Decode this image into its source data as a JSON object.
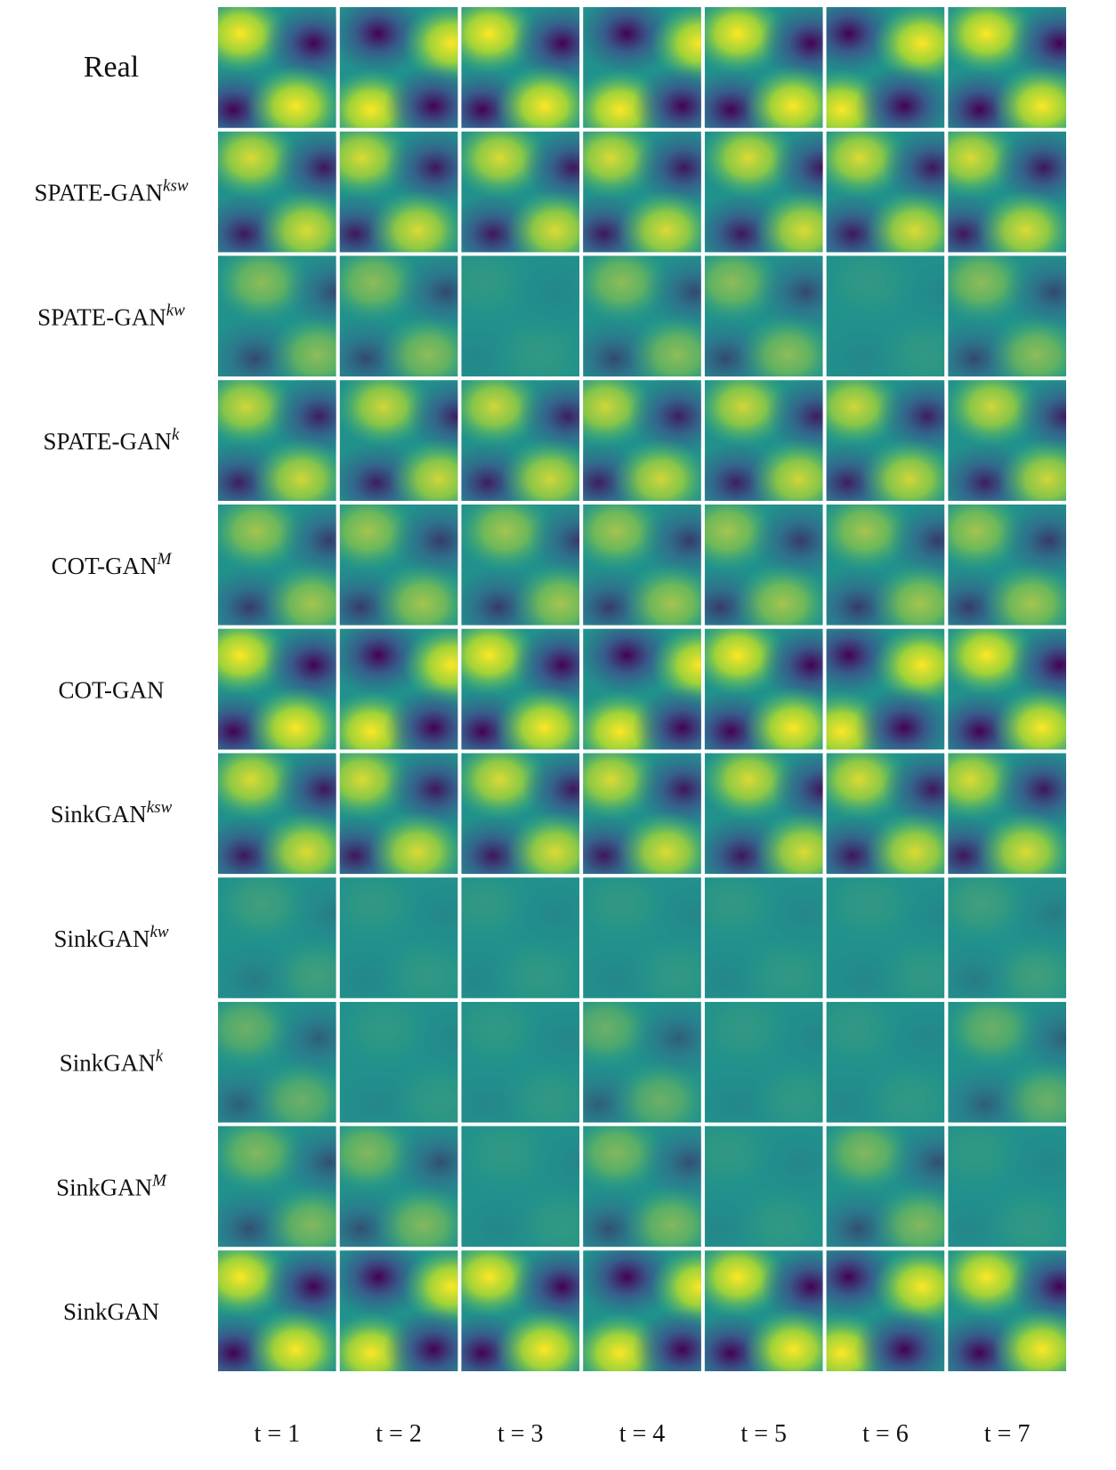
{
  "figure": {
    "rows": [
      {
        "name": "Real"
      },
      {
        "name": "SPATE-GAN",
        "sup": "ksw"
      },
      {
        "name": "SPATE-GAN",
        "sup": "kw"
      },
      {
        "name": "SPATE-GAN",
        "sup": "k"
      },
      {
        "name": "COT-GAN",
        "sup": "M"
      },
      {
        "name": "COT-GAN"
      },
      {
        "name": "SinkGAN",
        "sup": "ksw"
      },
      {
        "name": "SinkGAN",
        "sup": "kw"
      },
      {
        "name": "SinkGAN",
        "sup": "k"
      },
      {
        "name": "SinkGAN",
        "sup": "M"
      },
      {
        "name": "SinkGAN"
      }
    ],
    "columns": [
      "t = 1",
      "t = 2",
      "t = 3",
      "t = 4",
      "t = 5",
      "t = 6",
      "t = 7"
    ]
  }
}
